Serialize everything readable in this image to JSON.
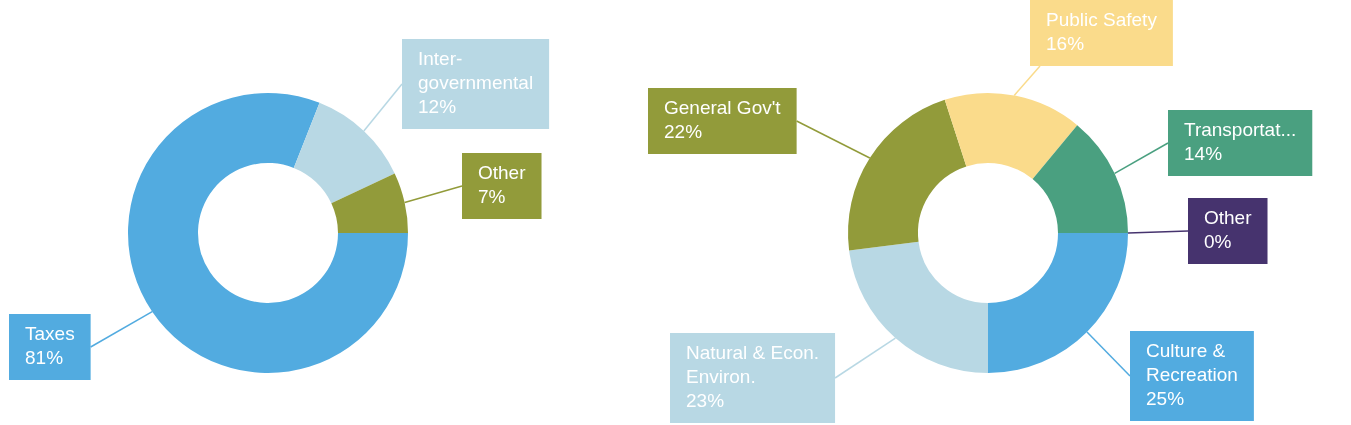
{
  "chart_data": [
    {
      "type": "donut",
      "categories": [
        "Taxes",
        "Inter-governmental",
        "Other"
      ],
      "values": [
        81,
        12,
        7
      ],
      "colors": [
        "#52abe0",
        "#b8d8e4",
        "#929b3a"
      ],
      "value_labels": [
        "81%",
        "12%",
        "7%"
      ]
    },
    {
      "type": "donut",
      "categories": [
        "Culture & Recreation",
        "Natural & Econ. Environ.",
        "General Gov't",
        "Public Safety",
        "Transportat...",
        "Other"
      ],
      "values": [
        25,
        23,
        22,
        16,
        14,
        0
      ],
      "colors": [
        "#52abe0",
        "#b8d8e4",
        "#929b3a",
        "#fadb8b",
        "#4aa080",
        "#46336e"
      ],
      "value_labels": [
        "25%",
        "23%",
        "22%",
        "16%",
        "14%",
        "0%"
      ]
    }
  ]
}
